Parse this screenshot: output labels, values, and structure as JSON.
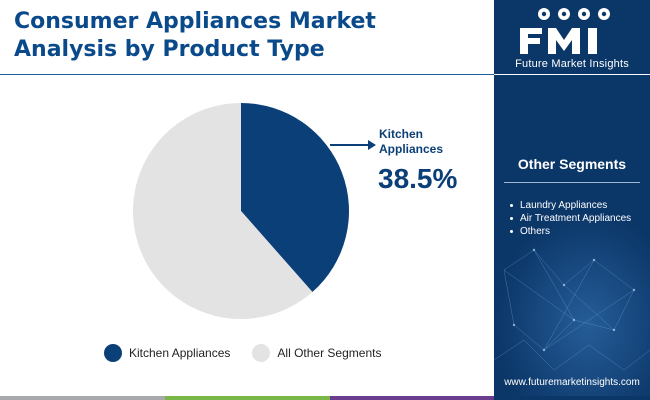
{
  "title": "Consumer Appliances Market\nAnalysis by Product Type",
  "brand": {
    "name": "Future Market Insights",
    "url": "www.futuremarketinsights.com"
  },
  "sidebar": {
    "heading": "Other Segments",
    "items": [
      "Laundry Appliances",
      "Air Treatment Appliances",
      "Others"
    ]
  },
  "colors": {
    "primary": "#0b3f78",
    "secondary": "#e3e3e3",
    "sidebar": "#0b3668",
    "bar_gray": "#a7a9ac",
    "bar_green": "#7ab648",
    "bar_purple": "#6a3d8f"
  },
  "chart_data": {
    "type": "pie",
    "slices": [
      {
        "label": "Kitchen Appliances",
        "value": 38.5,
        "color": "#0b3f78"
      },
      {
        "label": "All Other Segments",
        "value": 61.5,
        "color": "#e3e3e3"
      }
    ],
    "callout": {
      "label": "Kitchen\nAppliances",
      "value_text": "38.5%"
    },
    "legend_position": "bottom"
  }
}
